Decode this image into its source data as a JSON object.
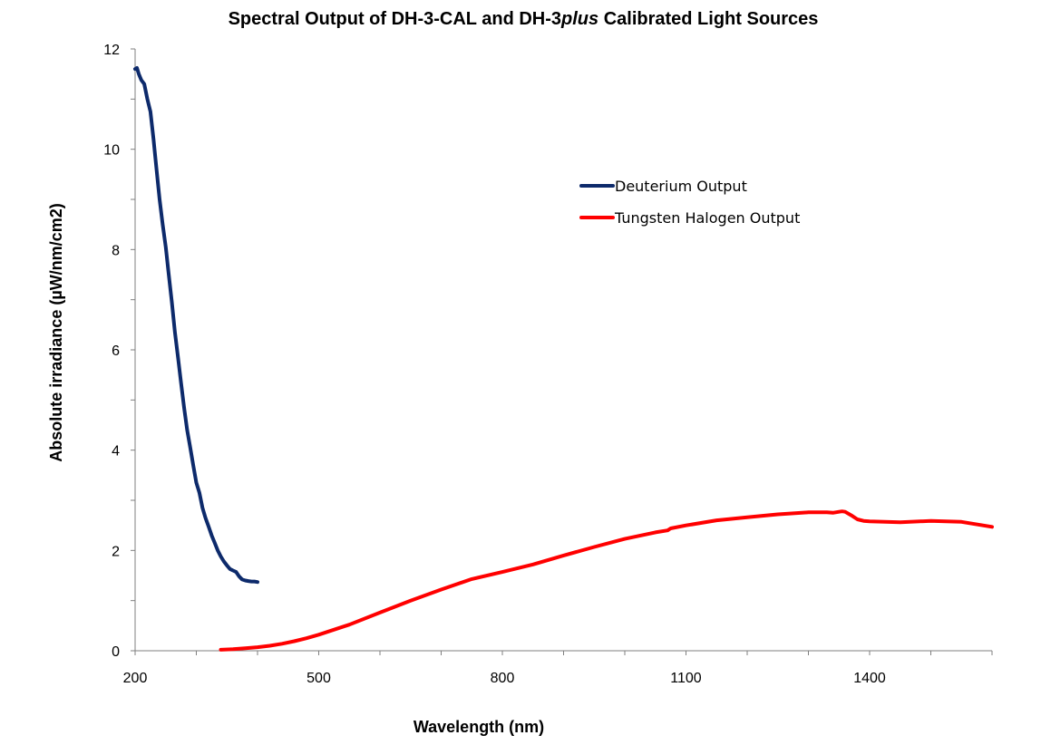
{
  "chart_data": {
    "type": "line",
    "title": {
      "prefix": "Spectral Output of DH-3-CAL and DH-3",
      "italic": "plus",
      "suffix": " Calibrated Light Sources"
    },
    "xlabel": "Wavelength (nm)",
    "ylabel": "Absolute irradiance (µW/nm/cm2)",
    "xlim": [
      200,
      1600
    ],
    "ylim": [
      0,
      12
    ],
    "x_ticks": [
      200,
      500,
      800,
      1100,
      1400
    ],
    "x_minor_step": 100,
    "y_ticks": [
      0,
      2,
      4,
      6,
      8,
      10,
      12
    ],
    "y_minor_step": 1,
    "grid": false,
    "legend_position": "top-right",
    "series": [
      {
        "name": "Deuterium Output",
        "color": "#0d2a6b",
        "x": [
          200,
          203,
          206,
          210,
          215,
          220,
          225,
          230,
          235,
          240,
          245,
          250,
          255,
          260,
          265,
          270,
          275,
          280,
          285,
          290,
          295,
          300,
          305,
          310,
          315,
          320,
          325,
          330,
          335,
          340,
          345,
          350,
          355,
          360,
          365,
          370,
          375,
          380,
          385,
          390,
          395,
          400
        ],
        "y": [
          11.6,
          11.62,
          11.5,
          11.38,
          11.3,
          11.0,
          10.75,
          10.2,
          9.6,
          9.0,
          8.5,
          8.05,
          7.5,
          6.95,
          6.35,
          5.85,
          5.35,
          4.85,
          4.4,
          4.05,
          3.7,
          3.35,
          3.15,
          2.85,
          2.65,
          2.48,
          2.3,
          2.15,
          2.0,
          1.88,
          1.78,
          1.7,
          1.63,
          1.6,
          1.57,
          1.48,
          1.42,
          1.4,
          1.39,
          1.38,
          1.38,
          1.37
        ]
      },
      {
        "name": "Tungsten Halogen Output",
        "color": "#ff0000",
        "x": [
          340,
          360,
          380,
          400,
          420,
          440,
          460,
          480,
          500,
          550,
          600,
          650,
          700,
          750,
          800,
          850,
          900,
          950,
          1000,
          1050,
          1070,
          1075,
          1100,
          1150,
          1200,
          1250,
          1300,
          1330,
          1340,
          1350,
          1355,
          1360,
          1370,
          1380,
          1390,
          1400,
          1450,
          1500,
          1550,
          1600
        ],
        "y": [
          0.02,
          0.03,
          0.05,
          0.07,
          0.1,
          0.14,
          0.19,
          0.25,
          0.32,
          0.52,
          0.76,
          1.0,
          1.22,
          1.43,
          1.57,
          1.72,
          1.9,
          2.07,
          2.23,
          2.36,
          2.4,
          2.44,
          2.5,
          2.6,
          2.66,
          2.72,
          2.76,
          2.76,
          2.75,
          2.77,
          2.78,
          2.77,
          2.7,
          2.62,
          2.59,
          2.58,
          2.56,
          2.59,
          2.57,
          2.47
        ]
      }
    ]
  }
}
